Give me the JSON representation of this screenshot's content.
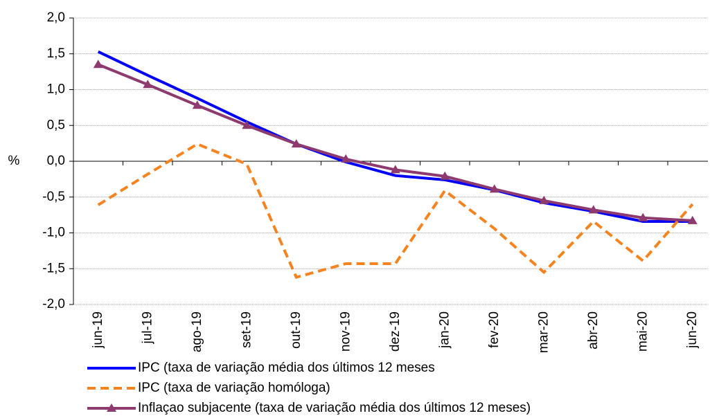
{
  "chart_data": {
    "type": "line",
    "y_label": "%",
    "categories": [
      "jun-19",
      "jul-19",
      "ago-19",
      "set-19",
      "out-19",
      "nov-19",
      "dez-19",
      "jan-20",
      "fev-20",
      "mar-20",
      "abr-20",
      "mai-20",
      "jun-20"
    ],
    "series": [
      {
        "name": "IPC (taxa de variação média dos últimos 12 meses",
        "color": "#0000ff",
        "dash": false,
        "marker": false,
        "values": [
          1.53,
          1.2,
          0.88,
          0.55,
          0.24,
          -0.01,
          -0.2,
          -0.26,
          -0.4,
          -0.58,
          -0.7,
          -0.84,
          -0.84
        ]
      },
      {
        "name": "IPC (taxa de variação homóloga)",
        "color": "#f7831f",
        "dash": true,
        "marker": false,
        "values": [
          -0.61,
          -0.18,
          0.24,
          -0.04,
          -1.62,
          -1.43,
          -1.43,
          -0.41,
          -0.94,
          -1.55,
          -0.84,
          -1.39,
          -0.6
        ]
      },
      {
        "name": "Inflaçao subjacente (taxa de variação média dos últimos 12 meses)",
        "color": "#8e3a6f",
        "dash": false,
        "marker": true,
        "values": [
          1.35,
          1.07,
          0.78,
          0.5,
          0.24,
          0.03,
          -0.12,
          -0.21,
          -0.39,
          -0.55,
          -0.68,
          -0.79,
          -0.83
        ]
      }
    ],
    "ylim": [
      -2,
      2
    ],
    "yticks": [
      {
        "value": -2,
        "label": "-2,0"
      },
      {
        "value": -1.5,
        "label": "-1,5"
      },
      {
        "value": -1,
        "label": "-1,0"
      },
      {
        "value": -0.5,
        "label": "-0,5"
      },
      {
        "value": 0,
        "label": "0,0"
      },
      {
        "value": 0.5,
        "label": "0,5"
      },
      {
        "value": 1,
        "label": "1,0"
      },
      {
        "value": 1.5,
        "label": "1,5"
      },
      {
        "value": 2,
        "label": "2,0"
      }
    ],
    "grid": true
  }
}
